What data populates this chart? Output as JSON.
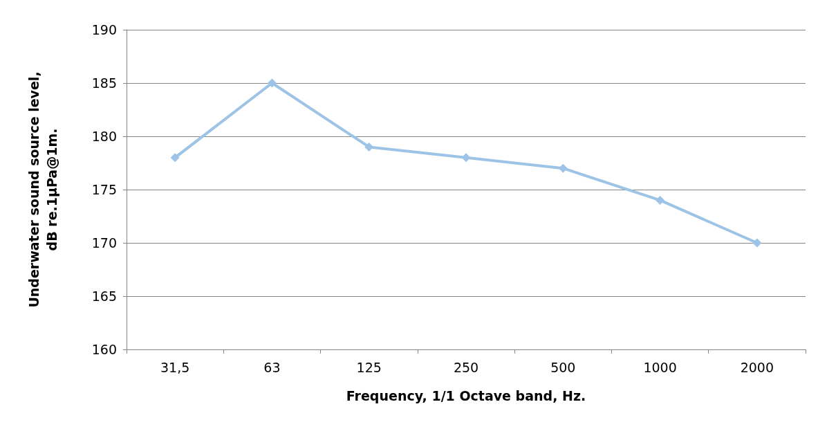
{
  "chart_data": {
    "type": "line",
    "xlabel": "Frequency, 1/1 Octave band, Hz.",
    "ylabel": "Underwater sound source level,\ndB re.1µPa@1m.",
    "categories": [
      "31,5",
      "63",
      "125",
      "250",
      "500",
      "1000",
      "2000"
    ],
    "series": [
      {
        "color": "#9dc3e6",
        "values": [
          178,
          185,
          179,
          178,
          177,
          174,
          170
        ]
      }
    ],
    "ylim": [
      160,
      190
    ],
    "yticks": [
      160,
      165,
      170,
      175,
      180,
      185,
      190
    ],
    "grid": "y",
    "marker": "diamond",
    "line_style": "solid"
  }
}
